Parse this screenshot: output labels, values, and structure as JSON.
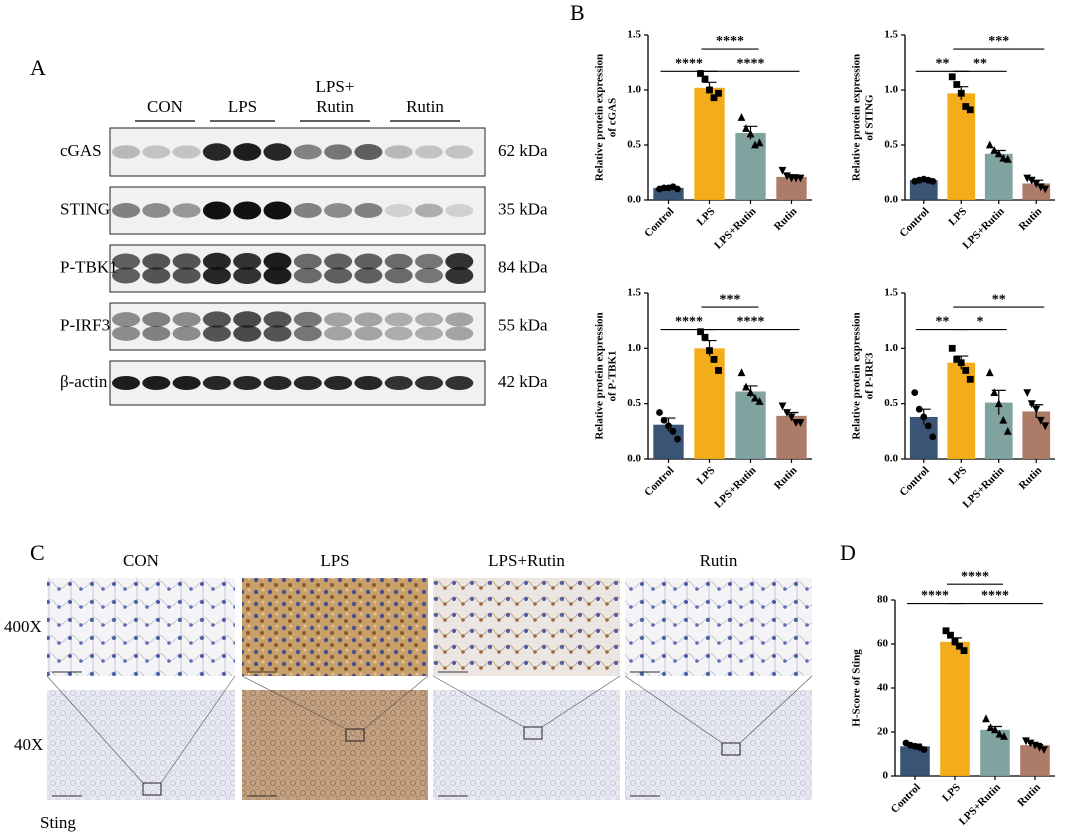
{
  "panel_labels": [
    "A",
    "B",
    "C",
    "D"
  ],
  "western_blot": {
    "groups": [
      [
        "CON"
      ],
      [
        "LPS"
      ],
      [
        "LPS+",
        "Rutin"
      ],
      [
        "Rutin"
      ]
    ],
    "rows": [
      {
        "protein": "cGAS",
        "size": "62 kDa"
      },
      {
        "protein": "STING",
        "size": "35 kDa"
      },
      {
        "protein": "P-TBK1",
        "size": "84 kDa"
      },
      {
        "protein": "P-IRF3",
        "size": "55 kDa"
      },
      {
        "protein": "β-actin",
        "size": "42 kDa"
      }
    ]
  },
  "ihc": {
    "columns": [
      "CON",
      "LPS",
      "LPS+Rutin",
      "Rutin"
    ],
    "rows": [
      "400X",
      "40X"
    ],
    "stain": "Sting"
  },
  "chart_data": [
    {
      "type": "bar",
      "ylabel": [
        "Relative protein expression",
        "of cGAS"
      ],
      "categories": [
        "Control",
        "LPS",
        "LPS+Rutin",
        "Rutin"
      ],
      "colors": [
        "#2f4b6e",
        "#f2a90f",
        "#7a9e9a",
        "#a97560"
      ],
      "markers": [
        "circle",
        "square",
        "triangle",
        "triangle-down"
      ],
      "values": [
        0.11,
        1.02,
        0.61,
        0.21
      ],
      "errors": [
        0.01,
        0.05,
        0.06,
        0.02
      ],
      "points": [
        [
          0.1,
          0.11,
          0.11,
          0.12,
          0.1
        ],
        [
          1.15,
          1.1,
          1.0,
          0.93,
          0.97
        ],
        [
          0.75,
          0.65,
          0.6,
          0.5,
          0.52
        ],
        [
          0.27,
          0.22,
          0.2,
          0.2,
          0.2
        ]
      ],
      "ylim": [
        0,
        1.5
      ],
      "yticks": [
        {
          "value": 0,
          "label": "0.0"
        },
        {
          "value": 0.5,
          "label": "0.5"
        },
        {
          "value": 1,
          "label": "1.0"
        },
        {
          "value": 1.5,
          "label": "1.5"
        }
      ],
      "comparisons": [
        {
          "groups": [
            0,
            1
          ],
          "label": "****"
        },
        {
          "groups": [
            1,
            3
          ],
          "label": "****"
        },
        {
          "groups": [
            1,
            2
          ],
          "label": "****"
        }
      ]
    },
    {
      "type": "bar",
      "ylabel": [
        "Relative protein expression",
        "of STING"
      ],
      "categories": [
        "Control",
        "LPS",
        "LPS+Rutin",
        "Rutin"
      ],
      "colors": [
        "#2f4b6e",
        "#f2a90f",
        "#7a9e9a",
        "#a97560"
      ],
      "markers": [
        "circle",
        "square",
        "triangle",
        "triangle-down"
      ],
      "values": [
        0.18,
        0.97,
        0.42,
        0.15
      ],
      "errors": [
        0.01,
        0.06,
        0.03,
        0.03
      ],
      "points": [
        [
          0.17,
          0.18,
          0.19,
          0.18,
          0.17
        ],
        [
          1.12,
          1.05,
          0.97,
          0.85,
          0.82
        ],
        [
          0.5,
          0.45,
          0.42,
          0.38,
          0.37
        ],
        [
          0.2,
          0.18,
          0.15,
          0.12,
          0.1
        ]
      ],
      "ylim": [
        0,
        1.5
      ],
      "yticks": [
        {
          "value": 0,
          "label": "0.0"
        },
        {
          "value": 0.5,
          "label": "0.5"
        },
        {
          "value": 1,
          "label": "1.0"
        },
        {
          "value": 1.5,
          "label": "1.5"
        }
      ],
      "comparisons": [
        {
          "groups": [
            0,
            1
          ],
          "label": "**"
        },
        {
          "groups": [
            1,
            2
          ],
          "label": "**"
        },
        {
          "groups": [
            1,
            3
          ],
          "label": "***"
        }
      ]
    },
    {
      "type": "bar",
      "ylabel": [
        "Relative protein expression",
        "of P-TBK1"
      ],
      "categories": [
        "Control",
        "LPS",
        "LPS+Rutin",
        "Rutin"
      ],
      "colors": [
        "#2f4b6e",
        "#f2a90f",
        "#7a9e9a",
        "#a97560"
      ],
      "markers": [
        "circle",
        "square",
        "triangle",
        "triangle-down"
      ],
      "values": [
        0.31,
        1.0,
        0.61,
        0.39
      ],
      "errors": [
        0.06,
        0.07,
        0.05,
        0.03
      ],
      "points": [
        [
          0.42,
          0.35,
          0.3,
          0.25,
          0.18
        ],
        [
          1.15,
          1.1,
          0.98,
          0.9,
          0.8
        ],
        [
          0.78,
          0.65,
          0.6,
          0.55,
          0.52
        ],
        [
          0.48,
          0.42,
          0.38,
          0.33,
          0.33
        ]
      ],
      "ylim": [
        0,
        1.5
      ],
      "yticks": [
        {
          "value": 0,
          "label": "0.0"
        },
        {
          "value": 0.5,
          "label": "0.5"
        },
        {
          "value": 1,
          "label": "1.0"
        },
        {
          "value": 1.5,
          "label": "1.5"
        }
      ],
      "comparisons": [
        {
          "groups": [
            0,
            1
          ],
          "label": "****"
        },
        {
          "groups": [
            1,
            3
          ],
          "label": "****"
        },
        {
          "groups": [
            1,
            2
          ],
          "label": "***"
        }
      ]
    },
    {
      "type": "bar",
      "ylabel": [
        "Relative protein expression",
        "of P-IRF3"
      ],
      "categories": [
        "Control",
        "LPS",
        "LPS+Rutin",
        "Rutin"
      ],
      "colors": [
        "#2f4b6e",
        "#f2a90f",
        "#7a9e9a",
        "#a97560"
      ],
      "markers": [
        "circle",
        "square",
        "triangle",
        "triangle-down"
      ],
      "values": [
        0.38,
        0.87,
        0.51,
        0.43
      ],
      "errors": [
        0.07,
        0.06,
        0.11,
        0.06
      ],
      "points": [
        [
          0.6,
          0.45,
          0.38,
          0.3,
          0.2
        ],
        [
          1.0,
          0.9,
          0.87,
          0.8,
          0.72
        ],
        [
          0.78,
          0.6,
          0.5,
          0.35,
          0.25
        ],
        [
          0.6,
          0.5,
          0.45,
          0.35,
          0.3
        ]
      ],
      "ylim": [
        0,
        1.5
      ],
      "yticks": [
        {
          "value": 0,
          "label": "0.0"
        },
        {
          "value": 0.5,
          "label": "0.5"
        },
        {
          "value": 1,
          "label": "1.0"
        },
        {
          "value": 1.5,
          "label": "1.5"
        }
      ],
      "comparisons": [
        {
          "groups": [
            0,
            1
          ],
          "label": "**"
        },
        {
          "groups": [
            1,
            2
          ],
          "label": "*"
        },
        {
          "groups": [
            1,
            3
          ],
          "label": "**"
        }
      ]
    },
    {
      "type": "bar",
      "ylabel": [
        "H-Score of Sting"
      ],
      "categories": [
        "Control",
        "LPS",
        "LPS+Rutin",
        "Rutin"
      ],
      "colors": [
        "#2f4b6e",
        "#f2a90f",
        "#7a9e9a",
        "#a97560"
      ],
      "markers": [
        "circle",
        "square",
        "triangle",
        "triangle-down"
      ],
      "values": [
        13.5,
        61,
        21,
        14
      ],
      "errors": [
        1,
        1.8,
        1.5,
        0.8
      ],
      "points": [
        [
          15,
          14,
          13.5,
          13,
          12
        ],
        [
          66,
          64,
          61,
          59,
          57
        ],
        [
          26,
          22,
          21,
          19,
          18
        ],
        [
          16,
          15,
          14,
          13,
          12
        ]
      ],
      "ylim": [
        0,
        80
      ],
      "yticks": [
        0,
        20,
        40,
        60,
        80
      ],
      "comparisons": [
        {
          "groups": [
            0,
            1
          ],
          "label": "****"
        },
        {
          "groups": [
            1,
            3
          ],
          "label": "****"
        },
        {
          "groups": [
            1,
            2
          ],
          "label": "****"
        }
      ]
    }
  ]
}
